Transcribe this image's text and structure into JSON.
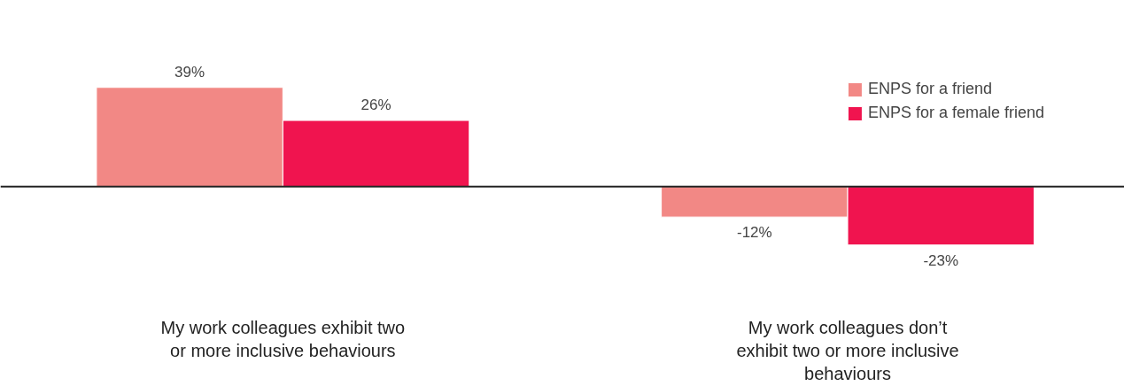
{
  "chart_data": {
    "type": "bar",
    "categories": [
      "My work colleagues exhibit two or more inclusive behaviours",
      "My work colleagues don’t exhibit two or more inclusive behaviours"
    ],
    "series": [
      {
        "name": "ENPS for a friend",
        "color": "#f28885",
        "values": [
          39,
          -12
        ],
        "value_labels": [
          "39%",
          "-12%"
        ]
      },
      {
        "name": "ENPS for a female friend",
        "color": "#f0144f",
        "values": [
          26,
          -23
        ],
        "value_labels": [
          "26%",
          "-23%"
        ]
      }
    ],
    "legend": "top right",
    "grid": false
  }
}
